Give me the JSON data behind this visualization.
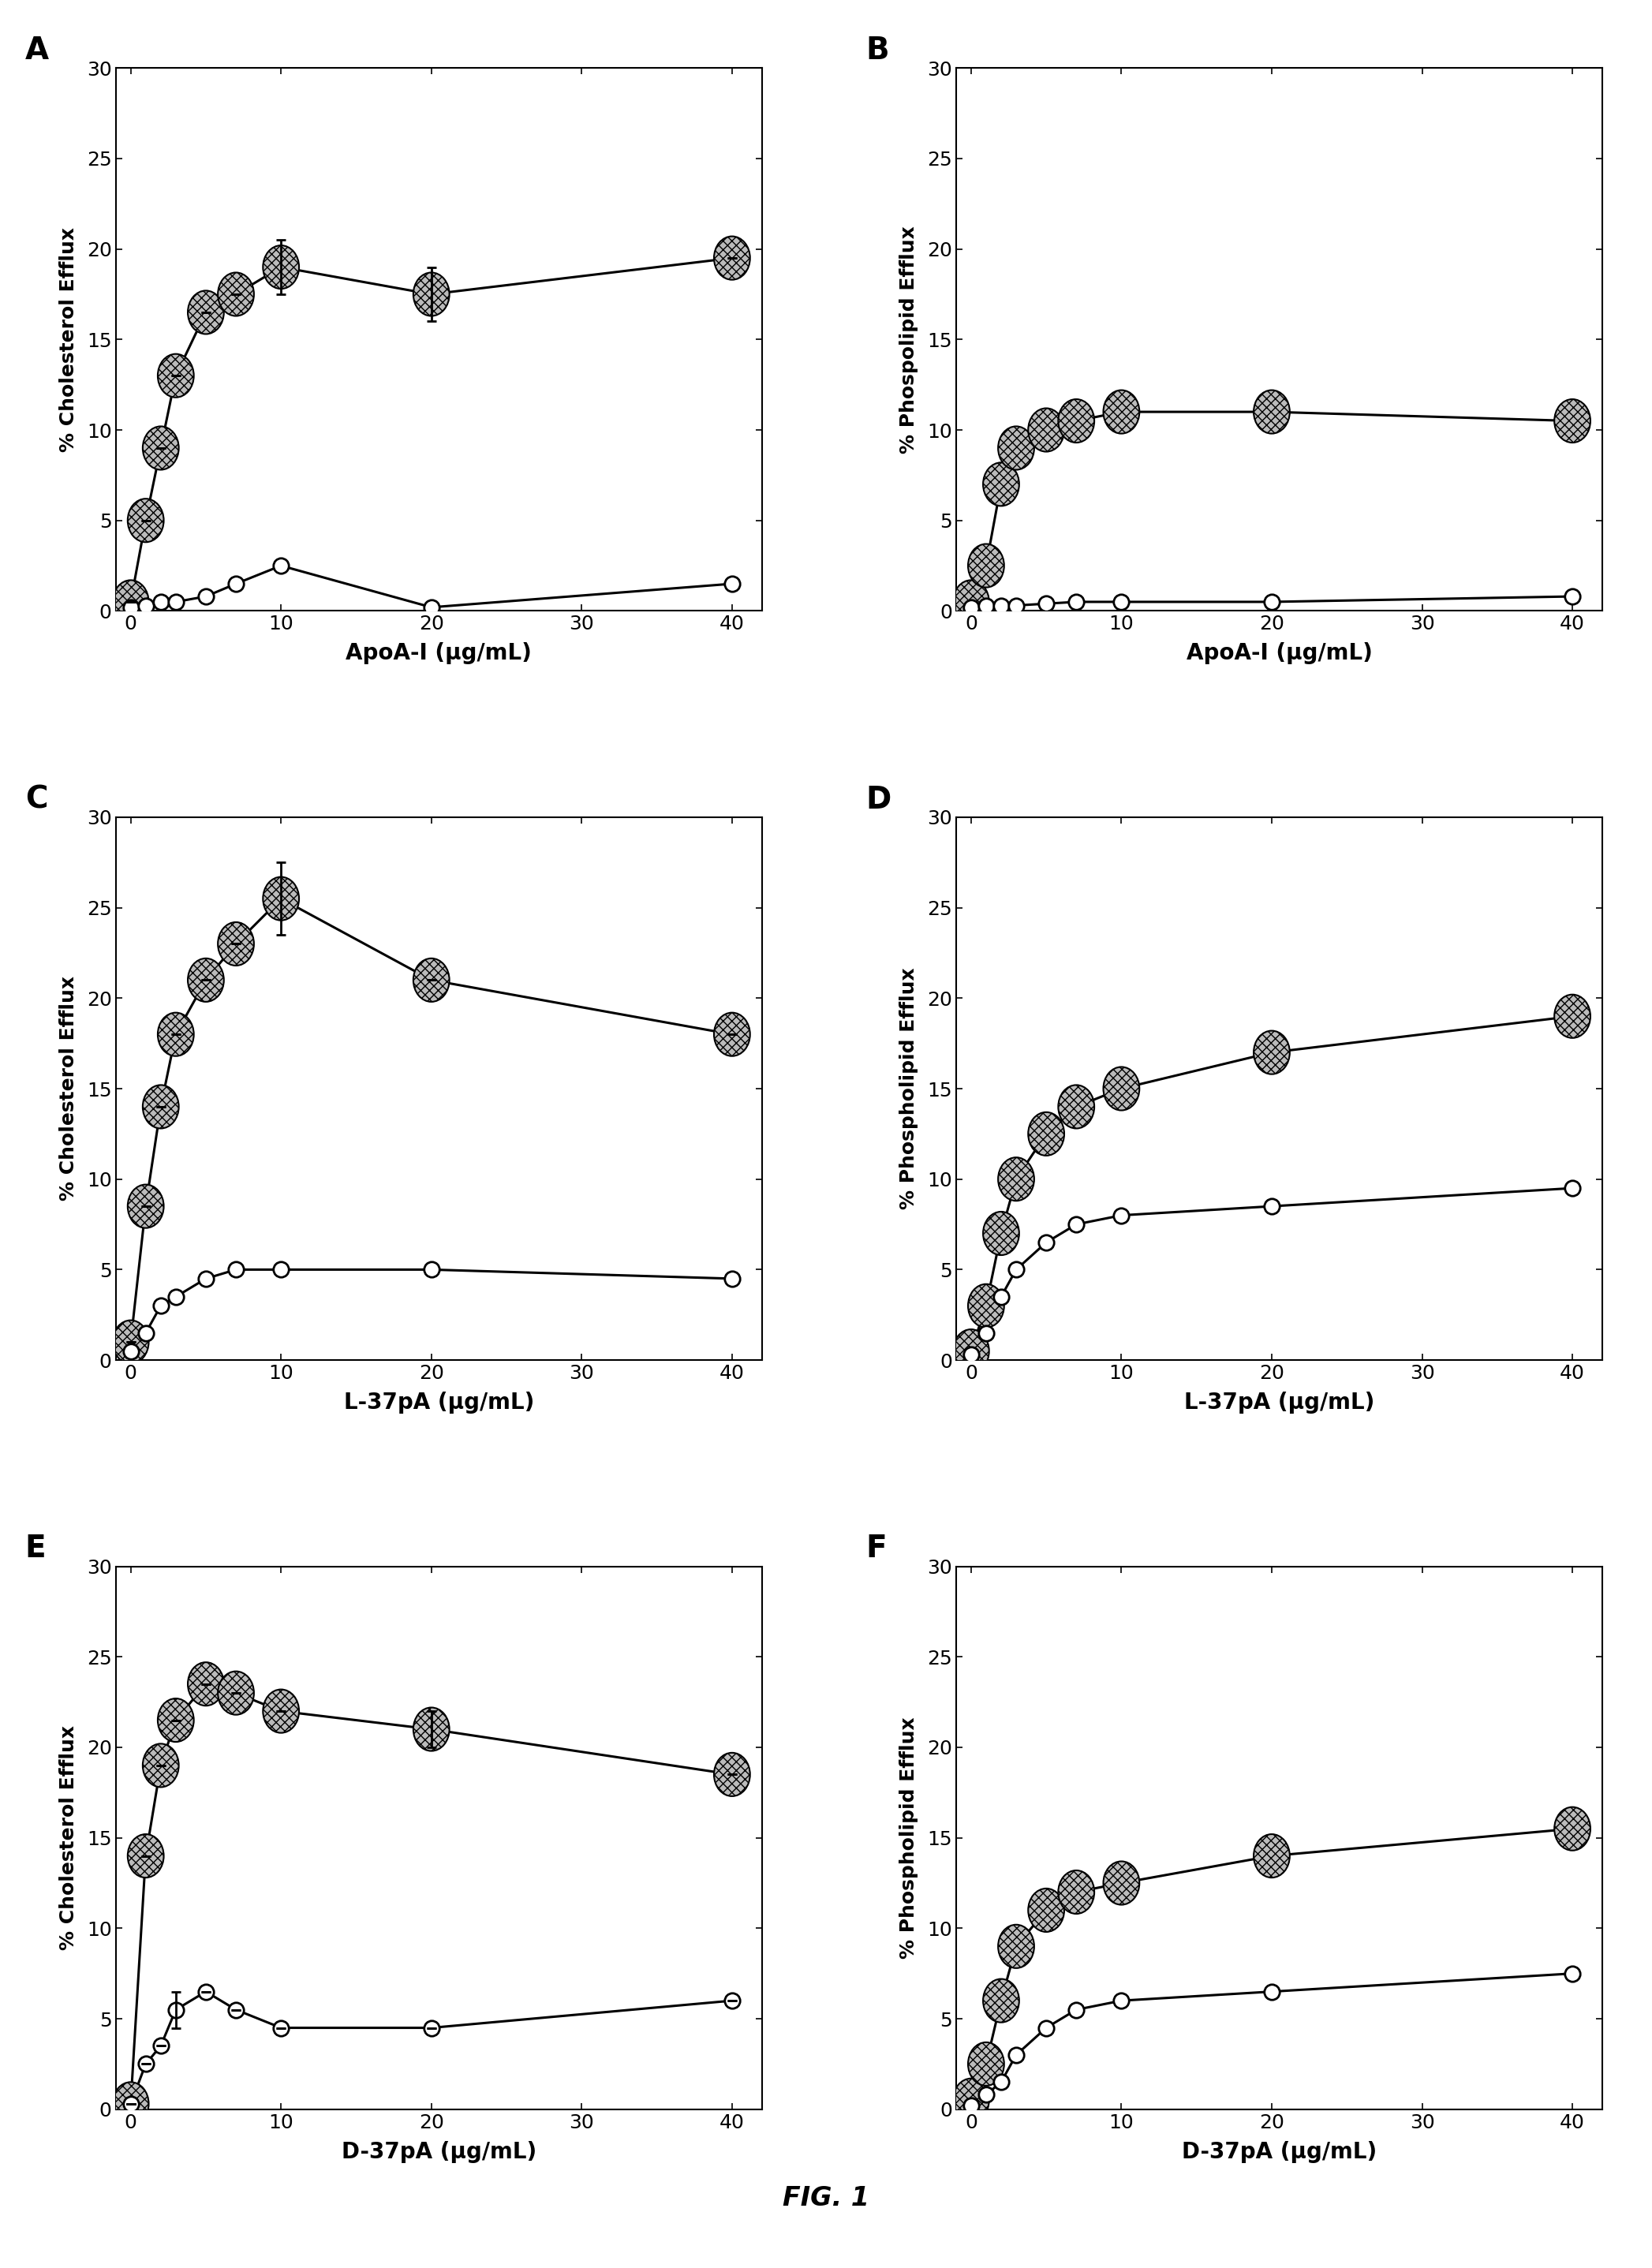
{
  "panels": [
    {
      "label": "A",
      "row": 0,
      "col": 0,
      "xlabel": "ApoA-I (μg/mL)",
      "ylabel": "% Cholesterol Efflux",
      "xlim": [
        -1,
        42
      ],
      "ylim": [
        0,
        30
      ],
      "xticks": [
        0,
        10,
        20,
        30,
        40
      ],
      "yticks": [
        0,
        5,
        10,
        15,
        20,
        25,
        30
      ],
      "series": [
        {
          "x": [
            0,
            1,
            2,
            3,
            5,
            7,
            10,
            20,
            40
          ],
          "y": [
            0.5,
            5.0,
            9.0,
            13.0,
            16.5,
            17.5,
            19.0,
            17.5,
            19.5
          ],
          "yerr": [
            0,
            0,
            0,
            0,
            0,
            0,
            1.5,
            1.5,
            0
          ],
          "marker": "hatched"
        },
        {
          "x": [
            0,
            1,
            2,
            3,
            5,
            7,
            10,
            20,
            40
          ],
          "y": [
            0.2,
            0.3,
            0.5,
            0.5,
            0.8,
            1.5,
            2.5,
            0.2,
            1.5
          ],
          "yerr": [
            0,
            0,
            0,
            0,
            0,
            0,
            0,
            0,
            0
          ],
          "marker": "open"
        }
      ]
    },
    {
      "label": "B",
      "row": 0,
      "col": 1,
      "xlabel": "ApoA-I (μg/mL)",
      "ylabel": "% Phospolipid Efflux",
      "xlim": [
        -1,
        42
      ],
      "ylim": [
        0,
        30
      ],
      "xticks": [
        0,
        10,
        20,
        30,
        40
      ],
      "yticks": [
        0,
        5,
        10,
        15,
        20,
        25,
        30
      ],
      "series": [
        {
          "x": [
            0,
            1,
            2,
            3,
            5,
            7,
            10,
            20,
            40
          ],
          "y": [
            0.5,
            2.5,
            7.0,
            9.0,
            10.0,
            10.5,
            11.0,
            11.0,
            10.5
          ],
          "yerr": [
            0,
            0,
            0,
            0,
            0,
            0,
            0,
            0,
            0
          ],
          "marker": "hatched"
        },
        {
          "x": [
            0,
            1,
            2,
            3,
            5,
            7,
            10,
            20,
            40
          ],
          "y": [
            0.2,
            0.3,
            0.3,
            0.3,
            0.4,
            0.5,
            0.5,
            0.5,
            0.8
          ],
          "yerr": [
            0,
            0,
            0,
            0,
            0,
            0,
            0,
            0,
            0
          ],
          "marker": "open"
        }
      ]
    },
    {
      "label": "C",
      "row": 1,
      "col": 0,
      "xlabel": "L-37pA (μg/mL)",
      "ylabel": "% Cholesterol Efflux",
      "xlim": [
        -1,
        42
      ],
      "ylim": [
        0,
        30
      ],
      "xticks": [
        0,
        10,
        20,
        30,
        40
      ],
      "yticks": [
        0,
        5,
        10,
        15,
        20,
        25,
        30
      ],
      "series": [
        {
          "x": [
            0,
            1,
            2,
            3,
            5,
            7,
            10,
            20,
            40
          ],
          "y": [
            1.0,
            8.5,
            14.0,
            18.0,
            21.0,
            23.0,
            25.5,
            21.0,
            18.0
          ],
          "yerr": [
            0,
            0,
            0,
            0,
            0,
            0,
            2.0,
            0,
            0
          ],
          "marker": "hatched"
        },
        {
          "x": [
            0,
            1,
            2,
            3,
            5,
            7,
            10,
            20,
            40
          ],
          "y": [
            0.5,
            1.5,
            3.0,
            3.5,
            4.5,
            5.0,
            5.0,
            5.0,
            4.5
          ],
          "yerr": [
            0,
            0,
            0,
            0,
            0,
            0,
            0,
            0,
            0
          ],
          "marker": "open"
        }
      ]
    },
    {
      "label": "D",
      "row": 1,
      "col": 1,
      "xlabel": "L-37pA (μg/mL)",
      "ylabel": "% Phospholipid Efflux",
      "xlim": [
        -1,
        42
      ],
      "ylim": [
        0,
        30
      ],
      "xticks": [
        0,
        10,
        20,
        30,
        40
      ],
      "yticks": [
        0,
        5,
        10,
        15,
        20,
        25,
        30
      ],
      "series": [
        {
          "x": [
            0,
            1,
            2,
            3,
            5,
            7,
            10,
            20,
            40
          ],
          "y": [
            0.5,
            3.0,
            7.0,
            10.0,
            12.5,
            14.0,
            15.0,
            17.0,
            19.0
          ],
          "yerr": [
            0,
            0,
            0,
            0,
            0,
            0,
            0,
            0,
            0
          ],
          "marker": "hatched"
        },
        {
          "x": [
            0,
            1,
            2,
            3,
            5,
            7,
            10,
            20,
            40
          ],
          "y": [
            0.3,
            1.5,
            3.5,
            5.0,
            6.5,
            7.5,
            8.0,
            8.5,
            9.5
          ],
          "yerr": [
            0,
            0,
            0,
            0,
            0,
            0,
            0,
            0,
            0
          ],
          "marker": "open"
        }
      ]
    },
    {
      "label": "E",
      "row": 2,
      "col": 0,
      "xlabel": "D-37pA (μg/mL)",
      "ylabel": "% Cholesterol Efflux",
      "xlim": [
        -1,
        42
      ],
      "ylim": [
        0,
        30
      ],
      "xticks": [
        0,
        10,
        20,
        30,
        40
      ],
      "yticks": [
        0,
        5,
        10,
        15,
        20,
        25,
        30
      ],
      "series": [
        {
          "x": [
            0,
            1,
            2,
            3,
            5,
            7,
            10,
            20,
            40
          ],
          "y": [
            0.3,
            14.0,
            19.0,
            21.5,
            23.5,
            23.0,
            22.0,
            21.0,
            18.5
          ],
          "yerr": [
            0,
            0,
            0,
            0,
            0,
            0,
            0,
            1.0,
            0
          ],
          "marker": "hatched"
        },
        {
          "x": [
            0,
            1,
            2,
            3,
            5,
            7,
            10,
            20,
            40
          ],
          "y": [
            0.3,
            2.5,
            3.5,
            5.5,
            6.5,
            5.5,
            4.5,
            4.5,
            6.0
          ],
          "yerr": [
            0,
            0,
            0,
            1.0,
            0,
            0,
            0,
            0,
            0
          ],
          "marker": "open"
        }
      ]
    },
    {
      "label": "F",
      "row": 2,
      "col": 1,
      "xlabel": "D-37pA (μg/mL)",
      "ylabel": "% Phospholipid Efflux",
      "xlim": [
        -1,
        42
      ],
      "ylim": [
        0,
        30
      ],
      "xticks": [
        0,
        10,
        20,
        30,
        40
      ],
      "yticks": [
        0,
        5,
        10,
        15,
        20,
        25,
        30
      ],
      "series": [
        {
          "x": [
            0,
            1,
            2,
            3,
            5,
            7,
            10,
            20,
            40
          ],
          "y": [
            0.5,
            2.5,
            6.0,
            9.0,
            11.0,
            12.0,
            12.5,
            14.0,
            15.5
          ],
          "yerr": [
            0,
            0,
            0,
            0,
            0,
            0,
            0,
            0,
            0
          ],
          "marker": "hatched"
        },
        {
          "x": [
            0,
            1,
            2,
            3,
            5,
            7,
            10,
            20,
            40
          ],
          "y": [
            0.2,
            0.8,
            1.5,
            3.0,
            4.5,
            5.5,
            6.0,
            6.5,
            7.5
          ],
          "yerr": [
            0,
            0,
            0,
            0,
            0,
            0,
            0,
            0,
            0
          ],
          "marker": "open"
        }
      ]
    }
  ],
  "fig_title": "FIG. 1",
  "background_color": "#ffffff",
  "marker_size": 14,
  "linewidth": 2.2,
  "capsize": 4
}
